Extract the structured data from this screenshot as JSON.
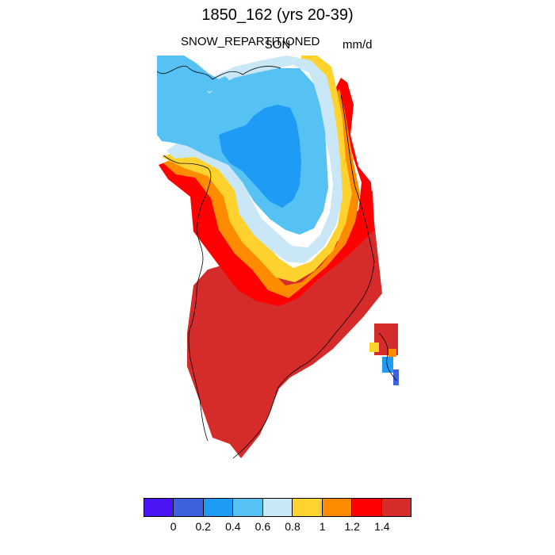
{
  "figure": {
    "title": "1850_162 (yrs 20-39)",
    "left_label": "SNOW_REPARTITIONED",
    "center_label": "SON",
    "right_label": "mm/d"
  },
  "colorbar": {
    "colors": [
      "#4b16f5",
      "#3f61e0",
      "#1e9bf5",
      "#56c2f3",
      "#c9e7f6",
      "#ffd22e",
      "#ff8c00",
      "#ff0000",
      "#d62b2b"
    ],
    "tick_labels": [
      "0",
      "0.2",
      "0.4",
      "0.6",
      "0.8",
      "1",
      "1.2",
      "1.4"
    ]
  },
  "map": {
    "region": "Greenland",
    "field_description": "Snow repartitioned, SON mean, mm/d",
    "dominant_colors": {
      "interior_north": "#56c2f3",
      "core": "#1e9bf5",
      "margin": "#ffd22e",
      "south": "#d62b2b"
    }
  }
}
